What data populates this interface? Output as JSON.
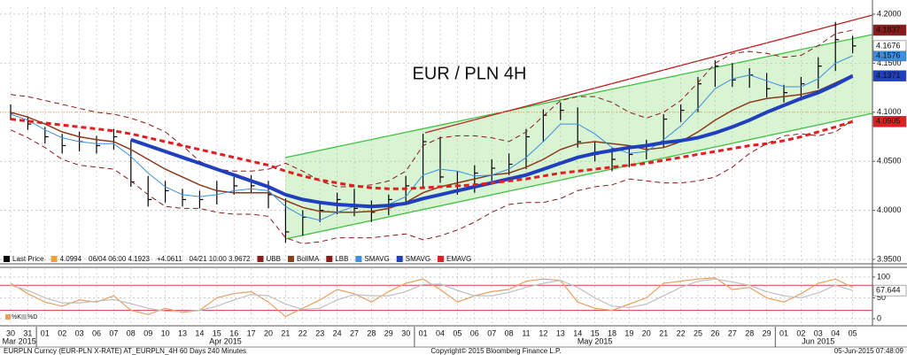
{
  "chart_data": [
    {
      "type": "candlestick",
      "title": "EUR / PLN 4H",
      "title_color": "#e0301e",
      "categories": [
        "30",
        "31",
        "01",
        "02",
        "03",
        "06",
        "07",
        "08",
        "09",
        "10",
        "13",
        "14",
        "15",
        "16",
        "17",
        "20",
        "21",
        "22",
        "23",
        "24",
        "27",
        "28",
        "29",
        "30",
        "01",
        "04",
        "05",
        "06",
        "07",
        "08",
        "11",
        "12",
        "13",
        "14",
        "15",
        "18",
        "19",
        "20",
        "21",
        "22",
        "25",
        "26",
        "27",
        "28",
        "29",
        "01",
        "02",
        "03",
        "04",
        "05"
      ],
      "months": [
        {
          "label": "Mar 2015",
          "start": 0
        },
        {
          "label": "Apr 2015",
          "start": 2
        },
        {
          "label": "May 2015",
          "start": 24
        },
        {
          "label": "Jun 2015",
          "start": 45
        }
      ],
      "high": [
        4.108,
        4.096,
        4.085,
        4.078,
        4.08,
        4.076,
        4.083,
        4.072,
        4.035,
        4.03,
        4.022,
        4.02,
        4.03,
        4.034,
        4.036,
        4.03,
        4.012,
        4.0,
        4.009,
        4.018,
        4.022,
        4.01,
        4.016,
        4.035,
        4.078,
        4.075,
        4.04,
        4.046,
        4.052,
        4.058,
        4.083,
        4.103,
        4.11,
        4.105,
        4.07,
        4.064,
        4.064,
        4.072,
        4.098,
        4.108,
        4.136,
        4.153,
        4.15,
        4.145,
        4.14,
        4.128,
        4.136,
        4.156,
        4.192,
        4.178
      ],
      "low": [
        4.092,
        4.082,
        4.068,
        4.058,
        4.06,
        4.058,
        4.062,
        4.024,
        4.004,
        4.008,
        4.004,
        4.002,
        4.006,
        4.016,
        4.018,
        4.002,
        3.967,
        3.974,
        3.988,
        3.996,
        3.994,
        3.988,
        3.995,
        4.008,
        4.022,
        4.028,
        4.016,
        4.018,
        4.03,
        4.036,
        4.042,
        4.07,
        4.092,
        4.064,
        4.05,
        4.04,
        4.044,
        4.052,
        4.064,
        4.09,
        4.1,
        4.126,
        4.126,
        4.125,
        4.115,
        4.11,
        4.112,
        4.124,
        4.142,
        4.16
      ],
      "close": [
        4.099,
        4.088,
        4.075,
        4.066,
        4.07,
        4.066,
        4.075,
        4.029,
        4.011,
        4.02,
        4.011,
        4.011,
        4.02,
        4.025,
        4.025,
        4.016,
        3.978,
        3.993,
        4.0,
        4.011,
        4.002,
        3.998,
        4.011,
        4.025,
        4.07,
        4.034,
        4.025,
        4.038,
        4.043,
        4.047,
        4.075,
        4.097,
        4.102,
        4.07,
        4.057,
        4.052,
        4.057,
        4.066,
        4.093,
        4.102,
        4.129,
        4.147,
        4.133,
        4.138,
        4.124,
        4.12,
        4.129,
        4.147,
        4.174,
        4.1676
      ],
      "close_color": "#000000",
      "close_tag": true,
      "series": [
        {
          "name": "UBB",
          "color": "#8b1a1a",
          "dashed": true,
          "width": 1,
          "tag": true,
          "values": [
            4.118,
            4.116,
            4.112,
            4.108,
            4.104,
            4.1,
            4.098,
            4.094,
            4.088,
            4.08,
            4.066,
            4.05,
            4.042,
            4.04,
            4.04,
            4.042,
            4.048,
            4.04,
            4.03,
            4.024,
            4.024,
            4.026,
            4.03,
            4.04,
            4.066,
            4.074,
            4.076,
            4.076,
            4.074,
            4.07,
            4.08,
            4.096,
            4.112,
            4.116,
            4.116,
            4.11,
            4.1,
            4.094,
            4.1,
            4.112,
            4.13,
            4.15,
            4.16,
            4.162,
            4.16,
            4.156,
            4.158,
            4.168,
            4.18,
            4.1837
          ]
        },
        {
          "name": "BollMA",
          "color": "#8b3a1a",
          "dashed": false,
          "width": 1.5,
          "tag": false,
          "values": [
            4.1,
            4.095,
            4.088,
            4.08,
            4.075,
            4.072,
            4.07,
            4.062,
            4.052,
            4.042,
            4.034,
            4.026,
            4.02,
            4.018,
            4.018,
            4.018,
            4.01,
            4.003,
            3.999,
            3.998,
            3.998,
            3.999,
            4.002,
            4.008,
            4.018,
            4.024,
            4.028,
            4.032,
            4.036,
            4.038,
            4.044,
            4.052,
            4.062,
            4.068,
            4.07,
            4.068,
            4.066,
            4.062,
            4.064,
            4.07,
            4.08,
            4.092,
            4.102,
            4.11,
            4.114,
            4.116,
            4.118,
            4.122,
            4.13,
            4.138
          ]
        },
        {
          "name": "LBB",
          "color": "#8b1a1a",
          "dashed": true,
          "width": 1,
          "tag": false,
          "values": [
            4.082,
            4.074,
            4.064,
            4.052,
            4.046,
            4.044,
            4.042,
            4.03,
            4.016,
            4.004,
            4.002,
            4.002,
            3.998,
            3.996,
            3.996,
            3.994,
            3.972,
            3.966,
            3.968,
            3.972,
            3.972,
            3.972,
            3.974,
            3.976,
            3.97,
            3.974,
            3.98,
            3.988,
            3.998,
            4.006,
            4.008,
            4.008,
            4.012,
            4.02,
            4.024,
            4.026,
            4.032,
            4.03,
            4.028,
            4.028,
            4.03,
            4.034,
            4.044,
            4.058,
            4.068,
            4.076,
            4.078,
            4.076,
            4.08,
            4.092
          ]
        },
        {
          "name": "SMAVG",
          "color": "#3c8fe0",
          "dashed": false,
          "width": 1,
          "tag": true,
          "values": [
            4.098,
            4.092,
            4.082,
            4.074,
            4.07,
            4.068,
            4.068,
            4.055,
            4.038,
            4.024,
            4.016,
            4.014,
            4.016,
            4.02,
            4.022,
            4.02,
            4.004,
            3.994,
            3.99,
            3.998,
            4.004,
            4.004,
            4.006,
            4.014,
            4.036,
            4.042,
            4.04,
            4.035,
            4.036,
            4.042,
            4.054,
            4.07,
            4.088,
            4.088,
            4.078,
            4.064,
            4.058,
            4.06,
            4.072,
            4.086,
            4.104,
            4.124,
            4.134,
            4.138,
            4.132,
            4.126,
            4.126,
            4.134,
            4.15,
            4.1576
          ]
        },
        {
          "name": "SMAVG",
          "color": "#1f3fbf",
          "dashed": false,
          "width": 4,
          "tag": true,
          "values": [
            null,
            null,
            null,
            null,
            null,
            null,
            null,
            4.072,
            4.066,
            4.06,
            4.054,
            4.048,
            4.042,
            4.036,
            4.03,
            4.024,
            4.016,
            4.011,
            4.008,
            4.006,
            4.005,
            4.004,
            4.005,
            4.007,
            4.012,
            4.016,
            4.02,
            4.024,
            4.028,
            4.032,
            4.036,
            4.042,
            4.048,
            4.054,
            4.058,
            4.061,
            4.064,
            4.066,
            4.069,
            4.071,
            4.074,
            4.079,
            4.085,
            4.092,
            4.1,
            4.107,
            4.114,
            4.12,
            4.128,
            4.1371
          ]
        },
        {
          "name": "EMAVG",
          "color": "#e02020",
          "dashed": true,
          "width": 3,
          "tag": true,
          "values": [
            4.093,
            4.091,
            4.089,
            4.087,
            4.085,
            4.083,
            4.081,
            4.078,
            4.074,
            4.07,
            4.066,
            4.062,
            4.058,
            4.054,
            4.05,
            4.046,
            4.04,
            4.035,
            4.031,
            4.028,
            4.025,
            4.023,
            4.022,
            4.022,
            4.023,
            4.024,
            4.025,
            4.026,
            4.028,
            4.03,
            4.032,
            4.035,
            4.038,
            4.04,
            4.042,
            4.044,
            4.046,
            4.048,
            4.051,
            4.054,
            4.057,
            4.06,
            4.063,
            4.066,
            4.068,
            4.071,
            4.075,
            4.08,
            4.085,
            4.0905
          ]
        }
      ],
      "legend_extra": [
        {
          "label": "Last Price",
          "color": "#000000"
        },
        {
          "label": "4.0994",
          "color": "#f0a030"
        },
        {
          "label": "06/04 06:00 4.1923",
          "color": null
        },
        {
          "label": "+4.0611",
          "color": null
        },
        {
          "label": "04/21 10:00 3.9672",
          "color": null
        }
      ],
      "hline": {
        "value": 4.1,
        "color": "#e8a33d"
      },
      "ylim": [
        3.9455,
        4.2072
      ],
      "yticks": [
        {
          "value": 3.95,
          "label": "3.9500"
        },
        {
          "value": 4.0,
          "label": "4.0000"
        },
        {
          "value": 4.05,
          "label": "4.0500"
        },
        {
          "value": 4.1,
          "label": "4.1000"
        },
        {
          "value": 4.15,
          "label": "4.1500"
        },
        {
          "value": 4.2,
          "label": "4.2000"
        }
      ],
      "grid": true
    },
    {
      "type": "line",
      "series": [
        {
          "name": "%K",
          "color": "#e8a060",
          "tag": false,
          "values": [
            85,
            60,
            40,
            30,
            45,
            40,
            55,
            20,
            10,
            25,
            15,
            20,
            50,
            60,
            65,
            40,
            5,
            25,
            45,
            70,
            60,
            40,
            65,
            85,
            95,
            70,
            40,
            55,
            65,
            70,
            90,
            95,
            92,
            40,
            25,
            20,
            35,
            50,
            85,
            90,
            95,
            98,
            70,
            75,
            50,
            40,
            60,
            85,
            95,
            75
          ]
        },
        {
          "name": "%D",
          "color": "#c0c0c0",
          "tag": true,
          "values": [
            80,
            68,
            50,
            38,
            38,
            42,
            46,
            36,
            25,
            18,
            17,
            20,
            30,
            45,
            58,
            55,
            35,
            22,
            25,
            45,
            58,
            55,
            55,
            65,
            82,
            83,
            68,
            55,
            55,
            63,
            75,
            85,
            92,
            75,
            50,
            30,
            27,
            35,
            55,
            75,
            90,
            95,
            88,
            80,
            65,
            55,
            50,
            62,
            80,
            67.644
          ]
        }
      ],
      "levels": [
        80,
        20
      ],
      "level_color": "#d04040",
      "ylim": [
        -17,
        121
      ],
      "yticks": [
        0,
        50,
        100
      ],
      "grid": true
    }
  ],
  "footer": {
    "left": "EURPLN Curncy (EUR-PLN X-RATE) AT_EURPLN_4H 60 Days 240 Minutes",
    "center": "Copyright© 2015 Bloomberg Finance L.P.",
    "right": "05-Jun-2015 07:48:09"
  }
}
